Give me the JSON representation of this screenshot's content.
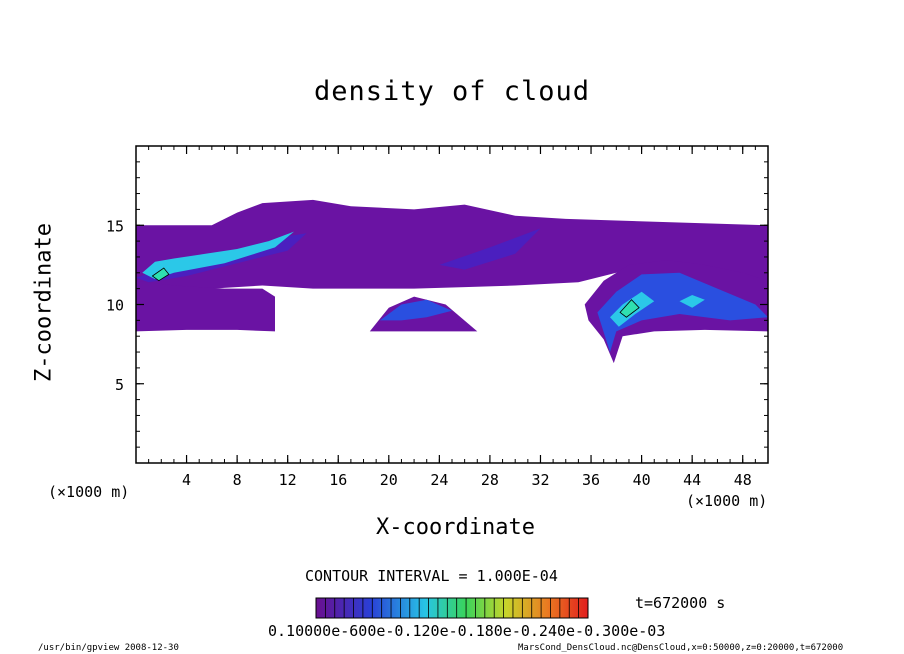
{
  "chart_data": {
    "type": "heatmap",
    "title": "density of cloud",
    "xlabel": "X-coordinate",
    "ylabel": "Z-coordinate",
    "x_unit_label": "(×1000 m)",
    "x_unit_label_2": "(×1000 m)",
    "xlim": [
      0,
      50
    ],
    "ylim": [
      0,
      20
    ],
    "x_ticks": [
      "4",
      "8",
      "12",
      "16",
      "20",
      "24",
      "28",
      "32",
      "36",
      "40",
      "44",
      "48"
    ],
    "y_ticks": [
      "5",
      "10",
      "15"
    ],
    "contour_interval_label": "CONTOUR INTERVAL = 1.000E-04",
    "time_label": "t=672000 s",
    "colorbar_tick_text": "0.10000e-600e-0.120e-0.180e-0.240e-0.300e-03",
    "colorbar_range": [
      0.0001,
      0.003
    ],
    "cloud_regions": [
      {
        "name": "upper layer west",
        "x": [
          0,
          14
        ],
        "z": [
          11.3,
          16.0
        ],
        "peak": 0.0012
      },
      {
        "name": "upper layer middle",
        "x": [
          14,
          30
        ],
        "z": [
          11.5,
          16.5
        ],
        "peak": 0.0006
      },
      {
        "name": "upper layer east",
        "x": [
          30,
          50
        ],
        "z": [
          11.0,
          15.0
        ],
        "peak": 0.0004
      },
      {
        "name": "lower layer west",
        "x": [
          0,
          11
        ],
        "z": [
          8.3,
          11.5
        ],
        "peak": 0.0003
      },
      {
        "name": "hump near x=22",
        "x": [
          18.5,
          27
        ],
        "z": [
          8.3,
          10.5
        ],
        "peak": 0.0008
      },
      {
        "name": "plume near x=38-50",
        "x": [
          35.5,
          50
        ],
        "z": [
          6.3,
          12.5
        ],
        "peak": 0.002
      }
    ],
    "grid": false
  },
  "footer": {
    "left": "/usr/bin/gpview  2008-12-30",
    "right": "MarsCond_DensCloud.nc@DensCloud,x=0:50000,z=0:20000,t=672000"
  }
}
